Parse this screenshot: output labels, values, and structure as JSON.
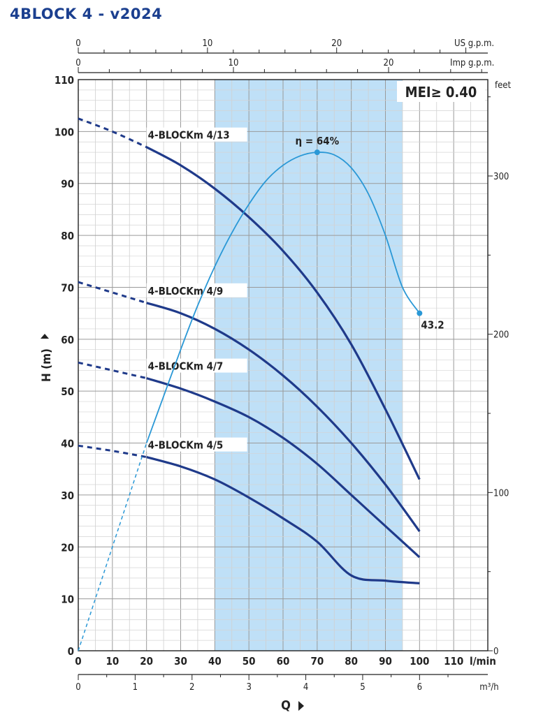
{
  "title": "4BLOCK 4 - v2024",
  "chart_data": {
    "type": "line",
    "title": "4BLOCK 4 - v2024",
    "xlabel": "Q",
    "ylabel": "H (m)",
    "x_unit": "l/min",
    "x_secondary_unit": "m³/h",
    "us_unit": "US g.p.m.",
    "imp_unit": "Imp g.p.m.",
    "right_unit": "feet",
    "mei_label": "MEI≥ 0.40",
    "xlim": [
      0,
      120
    ],
    "ylim": [
      0,
      110
    ],
    "x_ticks": [
      "0",
      "10",
      "20",
      "30",
      "40",
      "50",
      "60",
      "70",
      "80",
      "90",
      "100",
      "110"
    ],
    "y_ticks": [
      "0",
      "10",
      "20",
      "30",
      "40",
      "50",
      "60",
      "70",
      "80",
      "90",
      "100",
      "110"
    ],
    "m3h_ticks": [
      "0",
      "1",
      "2",
      "3",
      "4",
      "5",
      "6"
    ],
    "us_ticks": [
      "0",
      "10",
      "20"
    ],
    "imp_ticks": [
      "0",
      "10",
      "20"
    ],
    "feet_ticks": [
      "0",
      "100",
      "200",
      "300"
    ],
    "recommended_range": [
      40,
      95
    ],
    "grid": true,
    "series": [
      {
        "name": "4-BLOCKm 4/13",
        "dashed": {
          "x": [
            0,
            10,
            20
          ],
          "y": [
            102.5,
            100,
            97
          ]
        },
        "x": [
          20,
          30,
          40,
          50,
          60,
          70,
          80,
          90,
          100
        ],
        "y": [
          97,
          93.5,
          89,
          83.5,
          77,
          69,
          59,
          46.5,
          33
        ]
      },
      {
        "name": "4-BLOCKm 4/9",
        "dashed": {
          "x": [
            0,
            10,
            20
          ],
          "y": [
            71,
            69,
            67
          ]
        },
        "x": [
          20,
          30,
          40,
          50,
          60,
          70,
          80,
          90,
          100
        ],
        "y": [
          67,
          65,
          62,
          58,
          53,
          47,
          40,
          32,
          23
        ]
      },
      {
        "name": "4-BLOCKm 4/7",
        "dashed": {
          "x": [
            0,
            10,
            20
          ],
          "y": [
            55.5,
            54,
            52.5
          ]
        },
        "x": [
          20,
          30,
          40,
          50,
          60,
          70,
          80,
          90,
          100
        ],
        "y": [
          52.5,
          50.5,
          48,
          45,
          41,
          36,
          30,
          24,
          18
        ]
      },
      {
        "name": "4-BLOCKm 4/5",
        "dashed": {
          "x": [
            0,
            10,
            20
          ],
          "y": [
            39.5,
            38.5,
            37.3
          ]
        },
        "x": [
          20,
          30,
          40,
          50,
          60,
          70,
          80,
          90,
          100
        ],
        "y": [
          37.3,
          35.5,
          33,
          29.5,
          25.5,
          21,
          14.5,
          13.5,
          13
        ]
      }
    ],
    "efficiency": {
      "label": "η = 64%",
      "end_label": "43.2",
      "peak": [
        70,
        96
      ],
      "end": [
        100,
        65
      ],
      "dashed": {
        "x": [
          0,
          10,
          20
        ],
        "y": [
          0,
          20,
          40
        ]
      },
      "x": [
        20,
        25,
        30,
        35,
        40,
        45,
        50,
        55,
        60,
        65,
        70,
        75,
        80,
        85,
        90,
        95,
        100
      ],
      "y": [
        40,
        49,
        58,
        66.5,
        74,
        80.5,
        86,
        90.5,
        93.5,
        95.3,
        96,
        95.5,
        93,
        88,
        80,
        70,
        65
      ]
    }
  }
}
